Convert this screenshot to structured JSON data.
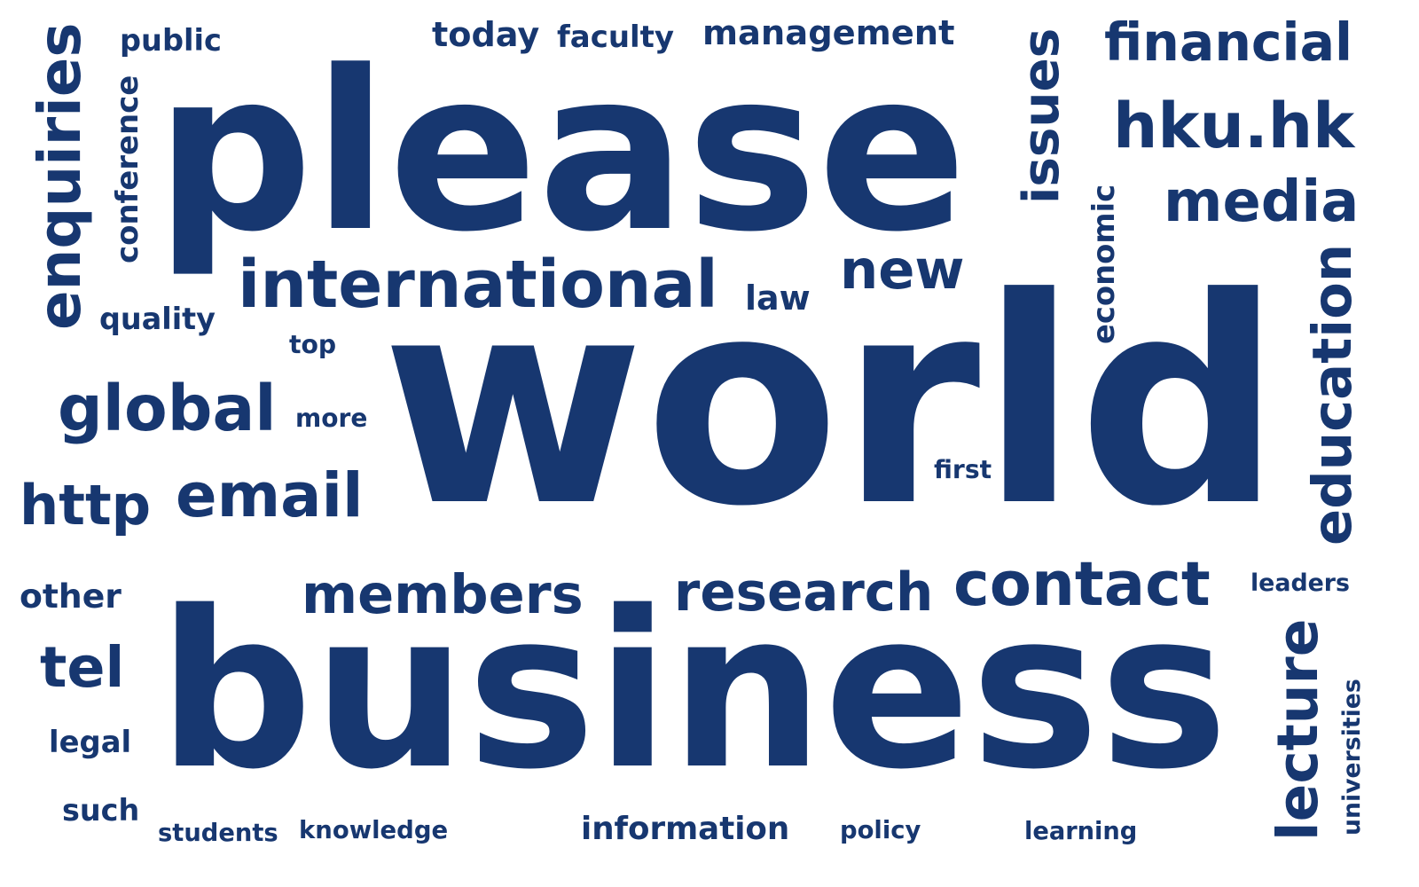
{
  "word_cloud": {
    "color": "#173770",
    "words": [
      {
        "text": "world"
      },
      {
        "text": "business"
      },
      {
        "text": "please"
      },
      {
        "text": "international"
      },
      {
        "text": "research"
      },
      {
        "text": "contact"
      },
      {
        "text": "members"
      },
      {
        "text": "enquiries"
      },
      {
        "text": "financial"
      },
      {
        "text": "hku.hk"
      },
      {
        "text": "media"
      },
      {
        "text": "education"
      },
      {
        "text": "lecture"
      },
      {
        "text": "issues"
      },
      {
        "text": "new"
      },
      {
        "text": "global"
      },
      {
        "text": "http"
      },
      {
        "text": "email"
      },
      {
        "text": "information"
      },
      {
        "text": "tel"
      },
      {
        "text": "management"
      },
      {
        "text": "today"
      },
      {
        "text": "faculty"
      },
      {
        "text": "other"
      },
      {
        "text": "law"
      },
      {
        "text": "quality"
      },
      {
        "text": "public"
      },
      {
        "text": "conference"
      },
      {
        "text": "legal"
      },
      {
        "text": "such"
      },
      {
        "text": "economic"
      },
      {
        "text": "leaders"
      },
      {
        "text": "universities"
      },
      {
        "text": "students"
      },
      {
        "text": "knowledge"
      },
      {
        "text": "policy"
      },
      {
        "text": "learning"
      },
      {
        "text": "more"
      },
      {
        "text": "top"
      },
      {
        "text": "first"
      }
    ]
  }
}
